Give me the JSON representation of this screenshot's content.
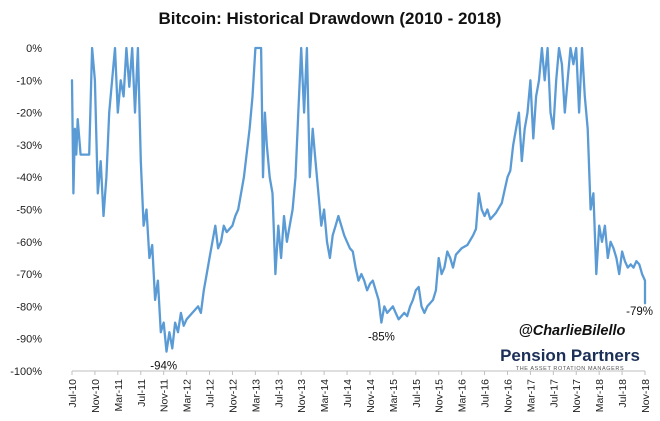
{
  "chart_data": {
    "type": "line",
    "title": "Bitcoin: Historical Drawdown (2010 - 2018)",
    "xlabel": "",
    "ylabel": "",
    "x_start": "2010-07",
    "x_end": "2018-11",
    "ylim": [
      -100,
      0
    ],
    "grid": false,
    "legend": "none",
    "line_color": "#5b9bd5",
    "y_ticks": [
      {
        "value": 0,
        "label": "0%"
      },
      {
        "value": -10,
        "label": "-10%"
      },
      {
        "value": -20,
        "label": "-20%"
      },
      {
        "value": -30,
        "label": "-30%"
      },
      {
        "value": -40,
        "label": "-40%"
      },
      {
        "value": -50,
        "label": "-50%"
      },
      {
        "value": -60,
        "label": "-60%"
      },
      {
        "value": -70,
        "label": "-70%"
      },
      {
        "value": -80,
        "label": "-80%"
      },
      {
        "value": -90,
        "label": "-90%"
      },
      {
        "value": -100,
        "label": "-100%"
      }
    ],
    "x_ticks": [
      {
        "date": "2010-07",
        "label": "Jul-10"
      },
      {
        "date": "2010-11",
        "label": "Nov-10"
      },
      {
        "date": "2011-03",
        "label": "Mar-11"
      },
      {
        "date": "2011-07",
        "label": "Jul-11"
      },
      {
        "date": "2011-11",
        "label": "Nov-11"
      },
      {
        "date": "2012-03",
        "label": "Mar-12"
      },
      {
        "date": "2012-07",
        "label": "Jul-12"
      },
      {
        "date": "2012-11",
        "label": "Nov-12"
      },
      {
        "date": "2013-03",
        "label": "Mar-13"
      },
      {
        "date": "2013-07",
        "label": "Jul-13"
      },
      {
        "date": "2013-11",
        "label": "Nov-13"
      },
      {
        "date": "2014-03",
        "label": "Mar-14"
      },
      {
        "date": "2014-07",
        "label": "Jul-14"
      },
      {
        "date": "2014-11",
        "label": "Nov-14"
      },
      {
        "date": "2015-03",
        "label": "Mar-15"
      },
      {
        "date": "2015-07",
        "label": "Jul-15"
      },
      {
        "date": "2015-11",
        "label": "Nov-15"
      },
      {
        "date": "2016-03",
        "label": "Mar-16"
      },
      {
        "date": "2016-07",
        "label": "Jul-16"
      },
      {
        "date": "2016-11",
        "label": "Nov-16"
      },
      {
        "date": "2017-03",
        "label": "Mar-17"
      },
      {
        "date": "2017-07",
        "label": "Jul-17"
      },
      {
        "date": "2017-11",
        "label": "Nov-17"
      },
      {
        "date": "2018-03",
        "label": "Mar-18"
      },
      {
        "date": "2018-07",
        "label": "Jul-18"
      },
      {
        "date": "2018-11",
        "label": "Nov-18"
      }
    ],
    "series": [
      {
        "points": [
          [
            "2010-07",
            -10
          ],
          [
            "2010-07",
            -45
          ],
          [
            "2010-07",
            -25
          ],
          [
            "2010-07",
            -33
          ],
          [
            "2010-08",
            -22
          ],
          [
            "2010-08",
            -33
          ],
          [
            "2010-09",
            -33
          ],
          [
            "2010-10",
            -33
          ],
          [
            "2010-10",
            0
          ],
          [
            "2010-11",
            -10
          ],
          [
            "2010-11",
            -45
          ],
          [
            "2010-12",
            -35
          ],
          [
            "2010-12",
            -52
          ],
          [
            "2011-01",
            -40
          ],
          [
            "2011-01",
            -20
          ],
          [
            "2011-02",
            -10
          ],
          [
            "2011-02",
            0
          ],
          [
            "2011-03",
            -20
          ],
          [
            "2011-03",
            -10
          ],
          [
            "2011-04",
            -15
          ],
          [
            "2011-04",
            0
          ],
          [
            "2011-05",
            -12
          ],
          [
            "2011-05",
            0
          ],
          [
            "2011-06",
            -20
          ],
          [
            "2011-06",
            0
          ],
          [
            "2011-07",
            -35
          ],
          [
            "2011-07",
            -55
          ],
          [
            "2011-08",
            -50
          ],
          [
            "2011-08",
            -65
          ],
          [
            "2011-09",
            -61
          ],
          [
            "2011-09",
            -78
          ],
          [
            "2011-10",
            -72
          ],
          [
            "2011-10",
            -88
          ],
          [
            "2011-11",
            -85
          ],
          [
            "2011-11",
            -94
          ],
          [
            "2011-12",
            -88
          ],
          [
            "2011-12",
            -93
          ],
          [
            "2012-01",
            -85
          ],
          [
            "2012-01",
            -88
          ],
          [
            "2012-02",
            -82
          ],
          [
            "2012-02",
            -86
          ],
          [
            "2012-03",
            -84
          ],
          [
            "2012-04",
            -82
          ],
          [
            "2012-05",
            -80
          ],
          [
            "2012-05",
            -82
          ],
          [
            "2012-06",
            -75
          ],
          [
            "2012-06",
            -70
          ],
          [
            "2012-07",
            -65
          ],
          [
            "2012-07",
            -60
          ],
          [
            "2012-08",
            -55
          ],
          [
            "2012-08",
            -62
          ],
          [
            "2012-09",
            -60
          ],
          [
            "2012-09",
            -55
          ],
          [
            "2012-10",
            -57
          ],
          [
            "2012-11",
            -55
          ],
          [
            "2012-11",
            -52
          ],
          [
            "2012-12",
            -50
          ],
          [
            "2013-01",
            -40
          ],
          [
            "2013-02",
            -25
          ],
          [
            "2013-02",
            -15
          ],
          [
            "2013-03",
            0
          ],
          [
            "2013-04",
            0
          ],
          [
            "2013-04",
            -40
          ],
          [
            "2013-04",
            -20
          ],
          [
            "2013-05",
            -30
          ],
          [
            "2013-05",
            -40
          ],
          [
            "2013-06",
            -45
          ],
          [
            "2013-06",
            -70
          ],
          [
            "2013-07",
            -55
          ],
          [
            "2013-07",
            -65
          ],
          [
            "2013-08",
            -52
          ],
          [
            "2013-08",
            -60
          ],
          [
            "2013-09",
            -55
          ],
          [
            "2013-09",
            -50
          ],
          [
            "2013-10",
            -40
          ],
          [
            "2013-10",
            -20
          ],
          [
            "2013-11",
            0
          ],
          [
            "2013-11",
            -20
          ],
          [
            "2013-12",
            0
          ],
          [
            "2013-12",
            -40
          ],
          [
            "2014-01",
            -25
          ],
          [
            "2014-01",
            -35
          ],
          [
            "2014-02",
            -45
          ],
          [
            "2014-02",
            -55
          ],
          [
            "2014-03",
            -50
          ],
          [
            "2014-03",
            -60
          ],
          [
            "2014-04",
            -65
          ],
          [
            "2014-04",
            -58
          ],
          [
            "2014-05",
            -55
          ],
          [
            "2014-05",
            -52
          ],
          [
            "2014-06",
            -55
          ],
          [
            "2014-06",
            -58
          ],
          [
            "2014-07",
            -60
          ],
          [
            "2014-07",
            -62
          ],
          [
            "2014-08",
            -63
          ],
          [
            "2014-08",
            -68
          ],
          [
            "2014-09",
            -72
          ],
          [
            "2014-09",
            -70
          ],
          [
            "2014-10",
            -72
          ],
          [
            "2014-10",
            -75
          ],
          [
            "2014-11",
            -73
          ],
          [
            "2014-11",
            -72
          ],
          [
            "2014-12",
            -75
          ],
          [
            "2014-12",
            -78
          ],
          [
            "2015-01",
            -85
          ],
          [
            "2015-01",
            -80
          ],
          [
            "2015-02",
            -82
          ],
          [
            "2015-03",
            -80
          ],
          [
            "2015-03",
            -82
          ],
          [
            "2015-04",
            -84
          ],
          [
            "2015-05",
            -82
          ],
          [
            "2015-05",
            -83
          ],
          [
            "2015-06",
            -80
          ],
          [
            "2015-06",
            -78
          ],
          [
            "2015-07",
            -75
          ],
          [
            "2015-07",
            -74
          ],
          [
            "2015-08",
            -80
          ],
          [
            "2015-08",
            -82
          ],
          [
            "2015-09",
            -80
          ],
          [
            "2015-10",
            -78
          ],
          [
            "2015-10",
            -75
          ],
          [
            "2015-11",
            -65
          ],
          [
            "2015-11",
            -70
          ],
          [
            "2015-12",
            -68
          ],
          [
            "2015-12",
            -63
          ],
          [
            "2016-01",
            -65
          ],
          [
            "2016-01",
            -68
          ],
          [
            "2016-02",
            -64
          ],
          [
            "2016-03",
            -62
          ],
          [
            "2016-04",
            -61
          ],
          [
            "2016-05",
            -58
          ],
          [
            "2016-05",
            -56
          ],
          [
            "2016-06",
            -45
          ],
          [
            "2016-06",
            -50
          ],
          [
            "2016-07",
            -52
          ],
          [
            "2016-07",
            -50
          ],
          [
            "2016-08",
            -53
          ],
          [
            "2016-08",
            -52
          ],
          [
            "2016-09",
            -51
          ],
          [
            "2016-10",
            -48
          ],
          [
            "2016-10",
            -44
          ],
          [
            "2016-11",
            -40
          ],
          [
            "2016-11",
            -38
          ],
          [
            "2016-12",
            -30
          ],
          [
            "2017-01",
            -20
          ],
          [
            "2017-01",
            -35
          ],
          [
            "2017-02",
            -25
          ],
          [
            "2017-02",
            -20
          ],
          [
            "2017-03",
            -10
          ],
          [
            "2017-03",
            -28
          ],
          [
            "2017-04",
            -15
          ],
          [
            "2017-04",
            -10
          ],
          [
            "2017-05",
            0
          ],
          [
            "2017-05",
            -10
          ],
          [
            "2017-06",
            0
          ],
          [
            "2017-06",
            -20
          ],
          [
            "2017-07",
            -25
          ],
          [
            "2017-07",
            -10
          ],
          [
            "2017-08",
            0
          ],
          [
            "2017-08",
            -5
          ],
          [
            "2017-09",
            -20
          ],
          [
            "2017-09",
            -10
          ],
          [
            "2017-10",
            0
          ],
          [
            "2017-10",
            -5
          ],
          [
            "2017-11",
            0
          ],
          [
            "2017-11",
            -20
          ],
          [
            "2017-12",
            0
          ],
          [
            "2017-12",
            -15
          ],
          [
            "2018-01",
            -25
          ],
          [
            "2018-01",
            -50
          ],
          [
            "2018-02",
            -45
          ],
          [
            "2018-02",
            -70
          ],
          [
            "2018-03",
            -55
          ],
          [
            "2018-03",
            -60
          ],
          [
            "2018-04",
            -55
          ],
          [
            "2018-04",
            -65
          ],
          [
            "2018-05",
            -60
          ],
          [
            "2018-05",
            -62
          ],
          [
            "2018-06",
            -65
          ],
          [
            "2018-06",
            -70
          ],
          [
            "2018-07",
            -63
          ],
          [
            "2018-07",
            -66
          ],
          [
            "2018-08",
            -68
          ],
          [
            "2018-08",
            -67
          ],
          [
            "2018-09",
            -68
          ],
          [
            "2018-09",
            -66
          ],
          [
            "2018-10",
            -67
          ],
          [
            "2018-10",
            -70
          ],
          [
            "2018-11",
            -72
          ],
          [
            "2018-11",
            -79
          ]
        ]
      }
    ],
    "annotations": [
      {
        "date": "2011-11",
        "value": -94,
        "label": "-94%"
      },
      {
        "date": "2015-01",
        "value": -85,
        "label": "-85%"
      },
      {
        "date": "2018-11",
        "value": -79,
        "label": "-79%"
      }
    ]
  },
  "watermark": {
    "handle": "@CharlieBilello",
    "brand": "Pension Partners",
    "tagline": "THE ASSET ROTATION MANAGERS"
  }
}
